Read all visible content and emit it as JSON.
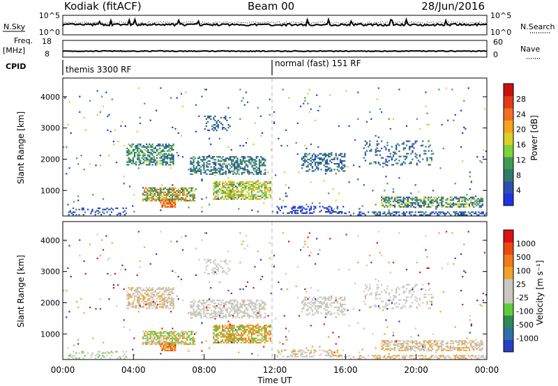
{
  "header": {
    "station": "Kodiak (fitACF)",
    "beam": "Beam 00",
    "date": "28/Jun/2016"
  },
  "noise_panel": {
    "left_label": "N.Sky",
    "left_ticks": [
      "10^5",
      "10^0"
    ],
    "right_ticks": [
      "10^5",
      "10^0"
    ],
    "right_label": "N.Search"
  },
  "freq_panel": {
    "left_label_top": "Freq.",
    "left_label_unit": "[MHz]",
    "left_ticks": [
      "18",
      "8"
    ],
    "right_ticks": [
      "60",
      "0"
    ],
    "right_label": "Nave"
  },
  "cpid": {
    "label": "CPID",
    "mode_1": "themis 3300 RF",
    "mode_2": "normal (fast) 151 RF"
  },
  "chart_data": [
    {
      "type": "heatmap",
      "name": "power",
      "ylabel": "Slant Range [km]",
      "xlabel": "Time UT",
      "x_ticks": [
        "00:00",
        "04:00",
        "08:00",
        "12:00",
        "16:00",
        "20:00",
        "00:00"
      ],
      "xlim_hours": [
        0,
        24
      ],
      "y_ticks": [
        1000,
        2000,
        3000,
        4000
      ],
      "ylim": [
        180,
        4600
      ],
      "mode_change_hour": 12,
      "colorbar": {
        "label": "Power [dB]",
        "ticks": [
          "4",
          "8",
          "12",
          "16",
          "20",
          "24",
          "28"
        ],
        "colors": [
          "#1c33e6",
          "#2c4fb0",
          "#2f7a6a",
          "#3f9a55",
          "#7cd43a",
          "#d6d12a",
          "#f5a21c",
          "#f07020",
          "#e23a1a",
          "#cc1010"
        ]
      }
    },
    {
      "type": "heatmap",
      "name": "velocity",
      "ylabel": "Slant Range [km]",
      "xlabel": "Time UT",
      "x_ticks": [
        "00:00",
        "04:00",
        "08:00",
        "12:00",
        "16:00",
        "20:00",
        "00:00"
      ],
      "xlim_hours": [
        0,
        24
      ],
      "y_ticks": [
        1000,
        2000,
        3000,
        4000
      ],
      "ylim": [
        180,
        4600
      ],
      "colorbar": {
        "label": "Velocity [m s⁻¹]",
        "ticks": [
          "1000",
          "500",
          "100",
          "25",
          "-25",
          "-100",
          "-500",
          "-1000"
        ],
        "colors": [
          "#2a3cc4",
          "#2f6fa8",
          "#2f8a55",
          "#5ecc3a",
          "#c8c8c0",
          "#c8c8c0",
          "#f0a22c",
          "#f07a1c",
          "#e84a14",
          "#dd1111"
        ]
      }
    }
  ]
}
